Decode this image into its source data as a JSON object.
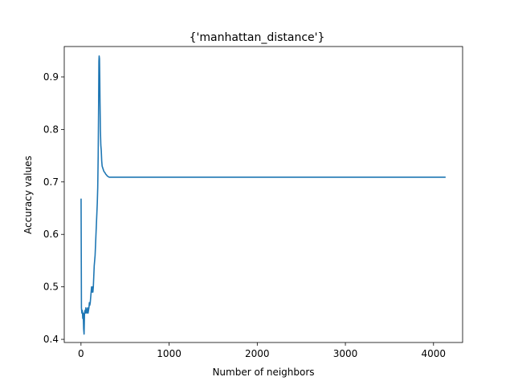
{
  "chart_data": {
    "type": "line",
    "title": "{'manhattan_distance'}",
    "xlabel": "Number of neighbors",
    "ylabel": "Accuracy values",
    "xlim": [
      -190,
      4330
    ],
    "ylim": [
      0.394,
      0.958
    ],
    "xticks": [
      0,
      1000,
      2000,
      3000,
      4000
    ],
    "xtick_labels": [
      "0",
      "1000",
      "2000",
      "3000",
      "4000"
    ],
    "yticks": [
      0.4,
      0.5,
      0.6,
      0.7,
      0.8,
      0.9
    ],
    "ytick_labels": [
      "0.4",
      "0.5",
      "0.6",
      "0.7",
      "0.8",
      "0.9"
    ],
    "grid": false,
    "line_color": "#1f77b4",
    "series": [
      {
        "x": [
          1,
          5,
          10,
          15,
          20,
          25,
          30,
          35,
          40,
          45,
          50,
          55,
          60,
          65,
          70,
          75,
          80,
          85,
          90,
          95,
          100,
          105,
          110,
          115,
          120,
          125,
          130,
          135,
          140,
          145,
          150,
          155,
          160,
          165,
          170,
          175,
          180,
          185,
          190,
          195,
          200,
          203,
          206,
          210,
          213,
          216,
          220,
          225,
          230,
          235,
          240,
          250,
          260,
          270,
          280,
          290,
          300,
          320,
          350,
          400,
          600,
          1000,
          2000,
          3000,
          4000,
          4130
        ],
        "y": [
          0.667,
          0.46,
          0.45,
          0.455,
          0.44,
          0.45,
          0.42,
          0.41,
          0.45,
          0.455,
          0.45,
          0.46,
          0.455,
          0.45,
          0.455,
          0.46,
          0.45,
          0.455,
          0.46,
          0.47,
          0.465,
          0.47,
          0.48,
          0.49,
          0.5,
          0.49,
          0.5,
          0.49,
          0.5,
          0.52,
          0.54,
          0.55,
          0.56,
          0.58,
          0.6,
          0.62,
          0.64,
          0.66,
          0.69,
          0.75,
          0.85,
          0.93,
          0.94,
          0.935,
          0.9,
          0.85,
          0.8,
          0.77,
          0.76,
          0.74,
          0.73,
          0.725,
          0.72,
          0.718,
          0.715,
          0.713,
          0.711,
          0.709,
          0.709,
          0.709,
          0.709,
          0.709,
          0.709,
          0.709,
          0.709,
          0.709
        ]
      }
    ]
  }
}
